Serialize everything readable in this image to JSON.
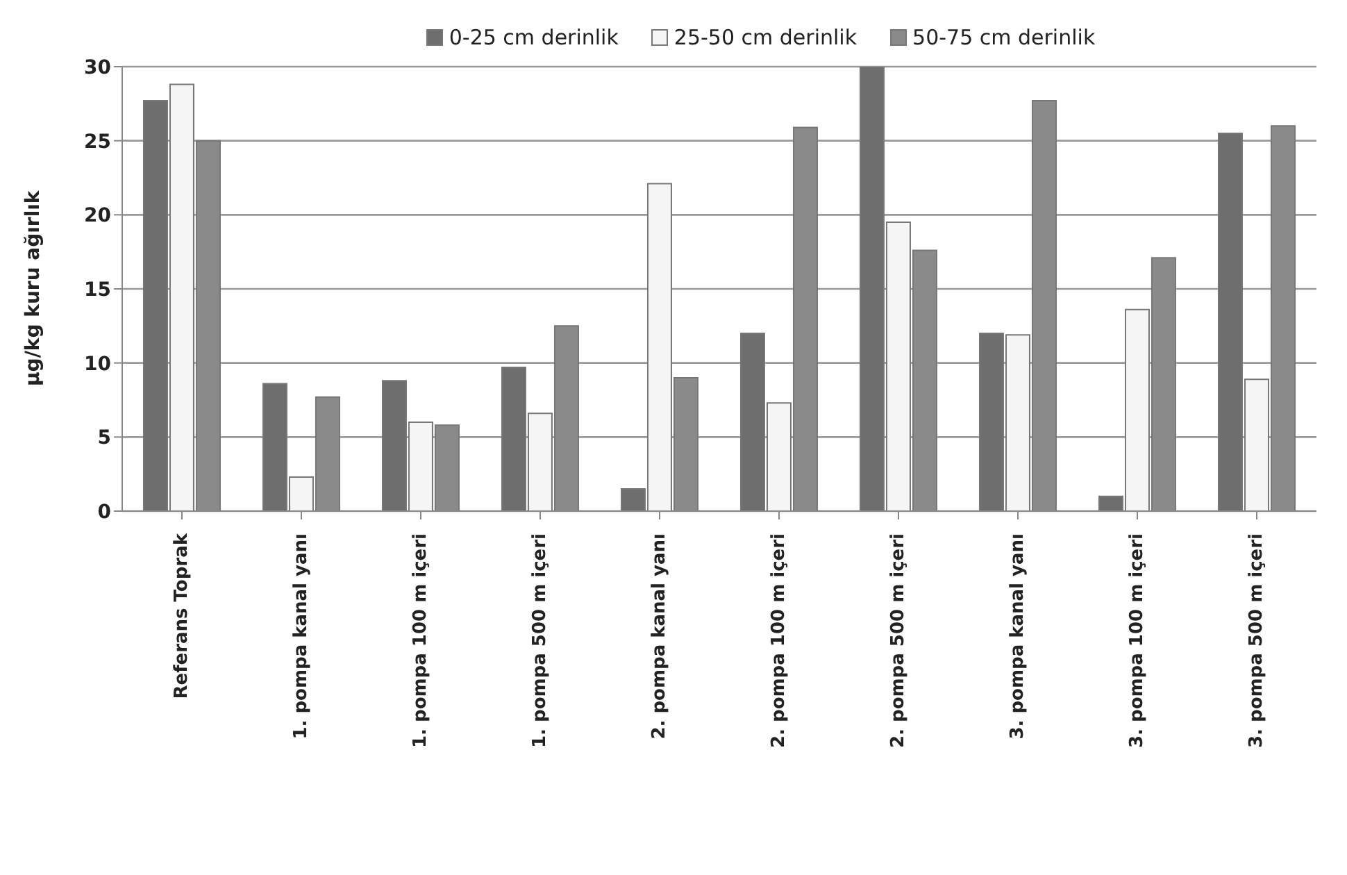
{
  "chart_data": {
    "type": "bar",
    "ylabel": "µg/kg kuru ağırlık",
    "categories": [
      "Referans Toprak",
      "1. pompa kanal yanı",
      "1. pompa 100 m içeri",
      "1. pompa 500 m içeri",
      "2. pompa kanal yanı",
      "2. pompa 100 m içeri",
      "2. pompa 500 m içeri",
      "3. pompa kanal yanı",
      "3. pompa 100 m içeri",
      "3. pompa 500 m içeri"
    ],
    "series": [
      {
        "name": "0-25 cm derinlik",
        "color": "#6e6e6e",
        "values": [
          27.7,
          8.6,
          8.8,
          9.7,
          1.5,
          12.0,
          30.0,
          12.0,
          1.0,
          25.5
        ]
      },
      {
        "name": "25-50 cm derinlik",
        "color": "#f5f5f5",
        "values": [
          28.8,
          2.3,
          6.0,
          6.6,
          22.1,
          7.3,
          19.5,
          11.9,
          13.6,
          8.9
        ]
      },
      {
        "name": "50-75 cm derinlik",
        "color": "#8a8a8a",
        "values": [
          25.0,
          7.7,
          5.8,
          12.5,
          9.0,
          25.9,
          17.6,
          27.7,
          17.1,
          26.0
        ]
      }
    ],
    "ylim": [
      0,
      30
    ],
    "yticks": [
      0,
      5,
      10,
      15,
      20,
      25,
      30
    ],
    "grid": "y",
    "legend": "top"
  }
}
